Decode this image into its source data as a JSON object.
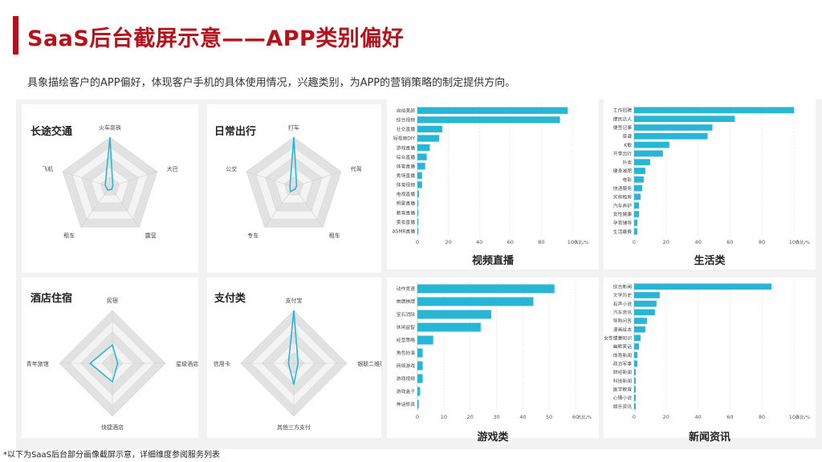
{
  "header": {
    "title": "SaaS后台截屏示意——APP类别偏好",
    "subtitle": "具象描绘客户的APP偏好，体现客户手机的具体使用情况，兴趣类别，为APP的营销策略的制定提供方向。"
  },
  "footnote": "*以下为SaaS后台部分画像截屏示意，详细维度参阅服务列表",
  "colors": {
    "accent": "#b5121b",
    "bar": "#29b6d6",
    "radar_line": "#29b6d6",
    "grid_dark": "#e2e2e2",
    "grid_light": "#f4f4f4"
  },
  "radars": [
    {
      "title": "长途交通",
      "axes": [
        "火车高铁",
        "大巴",
        "露营",
        "租车",
        "飞机"
      ],
      "values": [
        1.0,
        0.06,
        0.06,
        0.08,
        0.1
      ]
    },
    {
      "title": "日常出行",
      "axes": [
        "打车",
        "代驾",
        "租车",
        "专车",
        "公交"
      ],
      "values": [
        1.0,
        0.06,
        0.05,
        0.12,
        0.08
      ]
    },
    {
      "title": "酒店住宿",
      "axes": [
        "民宿",
        "星级酒店",
        "快捷酒店",
        "青年旅馆"
      ],
      "values": [
        0.35,
        0.1,
        0.35,
        0.42
      ]
    },
    {
      "title": "支付类",
      "axes": [
        "支付宝",
        "银联二维码",
        "其他三方支付",
        "信用卡"
      ],
      "values": [
        1.0,
        0.08,
        0.4,
        0.1
      ]
    }
  ],
  "chart_data": [
    {
      "type": "bar",
      "orientation": "horizontal",
      "title": "视频直播",
      "categories": [
        "自拍美颜",
        "综合视频",
        "社交直播",
        "短视频DIY",
        "游戏直播",
        "综合直播",
        "体育直播",
        "秀场直播",
        "体育视频",
        "电视直播",
        "明星直播",
        "教育直播",
        "美妆直播",
        "ASMR直播"
      ],
      "values": [
        97,
        92,
        16,
        14,
        8,
        6,
        5,
        3,
        3,
        1,
        0.5,
        0.5,
        0.5,
        0.5
      ],
      "xlim": [
        0,
        100
      ],
      "ticks": [
        0,
        20,
        40,
        60,
        80,
        100
      ],
      "xlabel": "占比/%"
    },
    {
      "type": "bar",
      "orientation": "horizontal",
      "title": "生活类",
      "categories": [
        "工作招聘",
        "便民达人",
        "便签记事",
        "菜谱",
        "K歌",
        "共享出行",
        "外卖",
        "健身减肥",
        "电影",
        "快递服务",
        "买房租房",
        "汽车养护",
        "女性健康",
        "孕育辅导",
        "生活缴费"
      ],
      "values": [
        100,
        63,
        49,
        46,
        22,
        18,
        10,
        7,
        6,
        5,
        4,
        3,
        3,
        2,
        2
      ],
      "xlim": [
        0,
        100
      ],
      "ticks": [
        0,
        20,
        40,
        60,
        80,
        100
      ],
      "xlabel": "占比/%"
    },
    {
      "type": "bar",
      "orientation": "horizontal",
      "title": "游戏类",
      "categories": [
        "动作竞速",
        "棋牌棋牌",
        "宝石消除",
        "休闲益智",
        "经营策略",
        "角色扮演",
        "网络游戏",
        "游戏视频",
        "游戏盒子",
        "神话修真"
      ],
      "values": [
        52,
        44,
        28,
        24,
        6,
        2,
        2,
        2,
        1,
        0.5
      ],
      "xlim": [
        0,
        60
      ],
      "ticks": [
        0,
        10,
        20,
        30,
        40,
        50,
        60
      ],
      "xlabel": "占比/%"
    },
    {
      "type": "bar",
      "orientation": "horizontal",
      "title": "新闻资讯",
      "categories": [
        "综合新闻",
        "文学历史",
        "有声小说",
        "汽车资讯",
        "导购问答",
        "漫画绘本",
        "女性健康知识",
        "幽默笑话",
        "体育新闻",
        "政治军事",
        "财经新闻",
        "科技新闻",
        "医学教育",
        "心情小说",
        "娱乐资讯"
      ],
      "values": [
        86,
        16,
        14,
        13,
        8,
        7,
        4,
        3,
        2,
        2,
        1,
        1,
        1,
        1,
        1
      ],
      "xlim": [
        0,
        100
      ],
      "ticks": [
        0,
        20,
        40,
        60,
        80,
        100
      ],
      "xlabel": "占比/%"
    }
  ]
}
